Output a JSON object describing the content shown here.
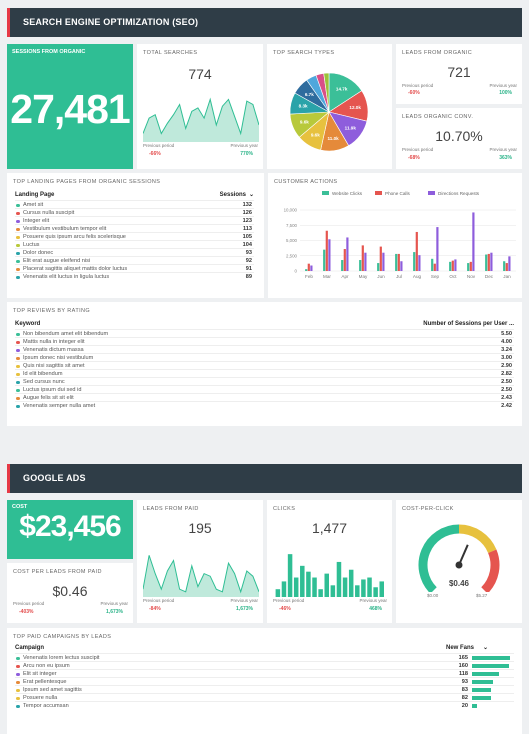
{
  "seo": {
    "header": "SEARCH ENGINE OPTIMIZATION (SEO)",
    "sessions": {
      "title": "SESSIONS FROM ORGANIC",
      "value": "27,481"
    },
    "total_searches": {
      "title": "TOTAL SEARCHES",
      "value": "774",
      "prev_label": "Previous period",
      "prev_value": "-66%",
      "year_label": "Previous year",
      "year_value": "770%",
      "trend": [
        5,
        14,
        16,
        5,
        11,
        16,
        22,
        8,
        18,
        20,
        14,
        25,
        10,
        21,
        25,
        15,
        5,
        24,
        22,
        10
      ]
    },
    "search_types": {
      "title": "TOP SEARCH TYPES",
      "slices": [
        {
          "label": "14.7k",
          "value": 14.7,
          "color": "#3bbf98"
        },
        {
          "label": "12.0k",
          "value": 12.0,
          "color": "#e5554f"
        },
        {
          "label": "11.9k",
          "value": 11.9,
          "color": "#8e5ddc"
        },
        {
          "label": "11.0k",
          "value": 11.0,
          "color": "#e58a3a"
        },
        {
          "label": "9.6k",
          "value": 9.6,
          "color": "#e7c13e"
        },
        {
          "label": "9.6k",
          "value": 9.6,
          "color": "#b8c93b"
        },
        {
          "label": "8.3k",
          "value": 8.3,
          "color": "#2aa3a9"
        },
        {
          "label": "6.7k",
          "value": 6.7,
          "color": "#2e6c9e"
        },
        {
          "label": "",
          "value": 4.0,
          "color": "#4fa7dc"
        },
        {
          "label": "",
          "value": 3.0,
          "color": "#d94f87"
        },
        {
          "label": "",
          "value": 2.0,
          "color": "#9bc23a"
        }
      ]
    },
    "leads_organic": {
      "title": "LEADS FROM ORGANIC",
      "value": "721",
      "prev_label": "Previous period",
      "prev_value": "-60%",
      "year_label": "Previous year",
      "year_value": "100%"
    },
    "leads_conv": {
      "title": "LEADS ORGANIC CONV.",
      "value": "10.70%",
      "prev_label": "Previous period",
      "prev_value": "-68%",
      "year_label": "Previous year",
      "year_value": "363%"
    },
    "landing": {
      "title": "TOP LANDING PAGES FROM ORGANIC SESSIONS",
      "col1": "Landing Page",
      "col2": "Sessions",
      "rows": [
        {
          "name": "Amet sit",
          "value": "132",
          "color": "#3bbf98"
        },
        {
          "name": "Cursus nulla suscipit",
          "value": "126",
          "color": "#e5554f"
        },
        {
          "name": "Integer elit",
          "value": "123",
          "color": "#8e5ddc"
        },
        {
          "name": "Vestibulum vestibulum tempor elit",
          "value": "113",
          "color": "#e58a3a"
        },
        {
          "name": "Posuere quis ipsum arcu felis scelerisque",
          "value": "105",
          "color": "#e7c13e"
        },
        {
          "name": "Luctus",
          "value": "104",
          "color": "#b8c93b"
        },
        {
          "name": "Dolor donec",
          "value": "93",
          "color": "#2aa3a9"
        },
        {
          "name": "Elit erat augue eleifend nisi",
          "value": "92",
          "color": "#3bbf98"
        },
        {
          "name": "Placerat sagittis aliquet mattis dolor luctus",
          "value": "91",
          "color": "#e58a3a"
        },
        {
          "name": "Venenatis elit luctus in ligula luctus",
          "value": "89",
          "color": "#2aa3a9"
        }
      ]
    },
    "actions": {
      "title": "CUSTOMER ACTIONS"
    },
    "reviews": {
      "title": "TOP REVIEWS BY RATING",
      "col1": "Keyword",
      "col2": "Number of Sessions per User ...",
      "rows": [
        {
          "name": "Non bibendum amet elit bibendum",
          "value": "5.50",
          "color": "#3bbf98"
        },
        {
          "name": "Mattis nulla in integer elit",
          "value": "4.00",
          "color": "#e5554f"
        },
        {
          "name": "Venenatis dictum massa",
          "value": "3.24",
          "color": "#8e5ddc"
        },
        {
          "name": "Ipsum donec nisi vestibulum",
          "value": "3.00",
          "color": "#e58a3a"
        },
        {
          "name": "Quis nisi sagittis sit amet",
          "value": "2.90",
          "color": "#e7c13e"
        },
        {
          "name": "Id elit bibendum",
          "value": "2.82",
          "color": "#e7c13e"
        },
        {
          "name": "Sed cursus nunc",
          "value": "2.50",
          "color": "#2aa3a9"
        },
        {
          "name": "Luctus ipsum dui sed id",
          "value": "2.50",
          "color": "#3bbf98"
        },
        {
          "name": "Augue felis sit sit elit",
          "value": "2.43",
          "color": "#e58a3a"
        },
        {
          "name": "Venenatis semper nulla amet",
          "value": "2.42",
          "color": "#2aa3a9"
        }
      ]
    }
  },
  "ads": {
    "header": "GOOGLE ADS",
    "cost": {
      "title": "COST",
      "value": "$23,456"
    },
    "leads_paid": {
      "title": "LEADS FROM PAID",
      "value": "195",
      "prev_label": "Previous period",
      "prev_value": "-84%",
      "year_label": "Previous year",
      "year_value": "1,673%",
      "trend": [
        3,
        16,
        9,
        3,
        10,
        14,
        3,
        2,
        12,
        4,
        9,
        8,
        3,
        2,
        13,
        9,
        2,
        10,
        8,
        2
      ]
    },
    "clicks": {
      "title": "CLICKS",
      "value": "1,477",
      "prev_label": "Previous period",
      "prev_value": "-46%",
      "year_label": "Previous year",
      "year_value": "468%",
      "bars": [
        4,
        8,
        22,
        10,
        16,
        13,
        10,
        4,
        12,
        6,
        18,
        10,
        14,
        6,
        9,
        10,
        5,
        8
      ]
    },
    "cpc": {
      "title": "COST-PER-CLICK",
      "value": "$0.46",
      "min": "$0.00",
      "max": "$5.27",
      "fraction": 0.087
    },
    "cost_per_leads": {
      "title": "COST PER LEADS FROM PAID",
      "value": "$0.46",
      "prev_label": "Previous period",
      "prev_value": "-403%",
      "year_label": "Previous year",
      "year_value": "1,673%"
    },
    "campaigns": {
      "title": "TOP PAID CAMPAIGNS BY LEADS",
      "col1": "Campaign",
      "col2": "New Fans",
      "rows": [
        {
          "name": "Venenatis lorem lectus suscipit",
          "value": "165",
          "color": "#3bbf98"
        },
        {
          "name": "Arcu non eu ipsum",
          "value": "160",
          "color": "#e5554f"
        },
        {
          "name": "Elit sit integer",
          "value": "118",
          "color": "#8e5ddc"
        },
        {
          "name": "Erat pellentesque",
          "value": "93",
          "color": "#e58a3a"
        },
        {
          "name": "Ipsum sed amet sagittis",
          "value": "83",
          "color": "#e7c13e"
        },
        {
          "name": "Posuere nulla",
          "value": "82",
          "color": "#e7c13e"
        },
        {
          "name": "Tempor accumsan",
          "value": "20",
          "color": "#2aa3a9"
        }
      ]
    }
  },
  "chart_data": {
    "type": "bar",
    "title": "CUSTOMER ACTIONS",
    "categories": [
      "Feb",
      "Mar",
      "Apr",
      "May",
      "Jun",
      "Jul",
      "Aug",
      "Sep",
      "Oct",
      "Nov",
      "Dec",
      "Jan"
    ],
    "ylim": [
      0,
      10000
    ],
    "yticks": [
      "0",
      "2,500",
      "5,000",
      "7,500",
      "10,000"
    ],
    "legend": "top",
    "series": [
      {
        "name": "Website Clicks",
        "color": "#3bbf98",
        "values": [
          300,
          3500,
          1800,
          1800,
          1300,
          2800,
          3100,
          2000,
          1500,
          1300,
          2700,
          1600
        ]
      },
      {
        "name": "Phone Calls",
        "color": "#e5554f",
        "values": [
          1200,
          6600,
          3600,
          4200,
          4000,
          2800,
          6400,
          1200,
          1700,
          1500,
          2800,
          1300
        ]
      },
      {
        "name": "Directions Requests",
        "color": "#8e5ddc",
        "values": [
          900,
          5200,
          5500,
          3000,
          3000,
          1600,
          2600,
          7200,
          1900,
          9600,
          3000,
          2400
        ]
      }
    ]
  }
}
